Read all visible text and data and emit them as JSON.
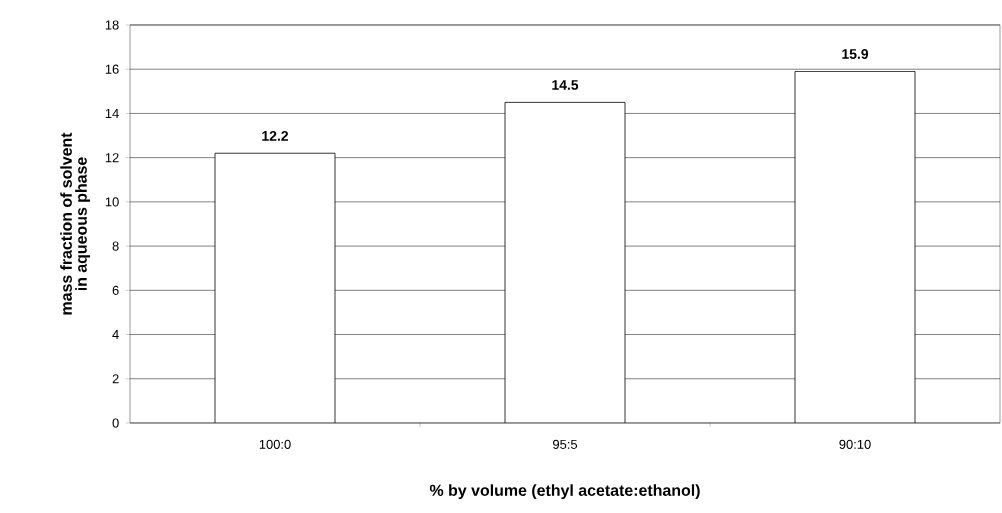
{
  "chart_data": {
    "type": "bar",
    "xlabel": "% by volume (ethyl acetate:ethanol)",
    "ylabel": "mass fraction of solvent in aqueous phase",
    "categories": [
      "100:0",
      "95:5",
      "90:10"
    ],
    "values": [
      12.2,
      14.5,
      15.9
    ],
    "colors": [
      "#ffffff",
      "#ffffff",
      "#ffffff"
    ],
    "ylim": [
      0,
      18
    ],
    "yticks": [
      0,
      2,
      4,
      6,
      8,
      10,
      12,
      14,
      16,
      18
    ],
    "grid": "y",
    "data_labels": true
  }
}
